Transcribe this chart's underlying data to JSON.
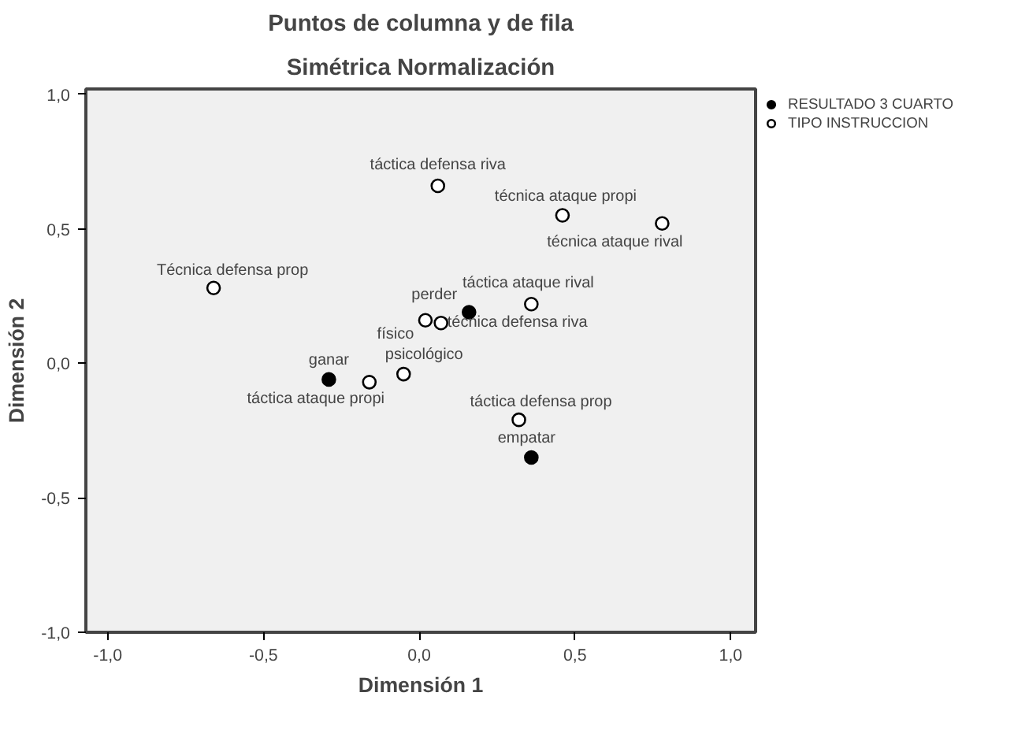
{
  "chart_data": {
    "type": "scatter",
    "title": "Puntos de columna y de fila",
    "subtitle": "Simétrica Normalización",
    "xlabel": "Dimensión 1",
    "ylabel": "Dimensión 2",
    "xlim": [
      -1.07,
      1.08
    ],
    "ylim": [
      -1.0,
      1.02
    ],
    "xticks": [
      {
        "value": -1,
        "label": "-1,0"
      },
      {
        "value": -0.5,
        "label": "-0,5"
      },
      {
        "value": 0,
        "label": "0,0"
      },
      {
        "value": 0.5,
        "label": "0,5"
      },
      {
        "value": 1,
        "label": "1,0"
      }
    ],
    "yticks": [
      {
        "value": -1,
        "label": "-1,0"
      },
      {
        "value": -0.5,
        "label": "-0,5"
      },
      {
        "value": 0,
        "label": "0,0"
      },
      {
        "value": 0.5,
        "label": "0,5"
      },
      {
        "value": 1,
        "label": "1,0"
      }
    ],
    "marker": "circle",
    "grid": false,
    "legend": "top right",
    "series": [
      {
        "name": "RESULTADO 3 CUARTO",
        "color": "#000000",
        "x": [
          -0.29,
          0.16,
          0.36
        ],
        "values": [
          -0.06,
          0.19,
          -0.35
        ]
      },
      {
        "name": "TIPO INSTRUCCION",
        "color": "#ffffff",
        "x": [
          0.06,
          0.46,
          0.78,
          -0.66,
          0.36,
          0.02,
          0.07,
          -0.05,
          -0.16,
          0.32
        ],
        "values": [
          0.66,
          0.55,
          0.52,
          0.28,
          0.22,
          0.16,
          0.15,
          -0.04,
          -0.07,
          -0.21
        ]
      }
    ],
    "annotations": [
      {
        "text": "ganar",
        "x": -0.29,
        "y": -0.06
      },
      {
        "text": "perder",
        "x": 0.16,
        "y": 0.19
      },
      {
        "text": "empatar",
        "x": 0.36,
        "y": -0.35
      },
      {
        "text": "táctica defensa riva",
        "x": 0.06,
        "y": 0.66
      },
      {
        "text": "técnica ataque propi",
        "x": 0.46,
        "y": 0.55
      },
      {
        "text": "técnica ataque rival",
        "x": 0.78,
        "y": 0.52
      },
      {
        "text": "Técnica defensa prop",
        "x": -0.66,
        "y": 0.28
      },
      {
        "text": "táctica ataque rival",
        "x": 0.36,
        "y": 0.22
      },
      {
        "text": "físico",
        "x": 0.02,
        "y": 0.16
      },
      {
        "text": "técnica defensa riva",
        "x": 0.07,
        "y": 0.15
      },
      {
        "text": "psicológico",
        "x": -0.05,
        "y": -0.04
      },
      {
        "text": "táctica ataque propi",
        "x": -0.16,
        "y": -0.07
      },
      {
        "text": "táctica defensa prop",
        "x": 0.32,
        "y": -0.21
      }
    ]
  }
}
